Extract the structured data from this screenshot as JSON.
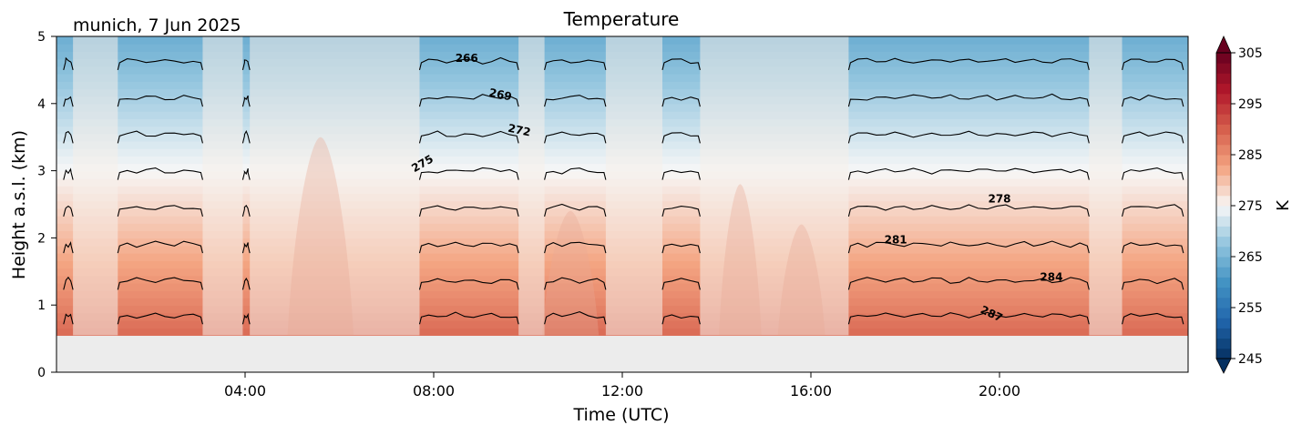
{
  "chart_data": {
    "type": "heatmap",
    "title": "Temperature",
    "location_date": "munich, 7 Jun 2025",
    "xlabel": "Time (UTC)",
    "ylabel": "Height a.s.l. (km)",
    "xlim": [
      0,
      24
    ],
    "ylim": [
      0,
      5
    ],
    "x_ticks": [
      {
        "value": 4,
        "label": "04:00"
      },
      {
        "value": 8,
        "label": "08:00"
      },
      {
        "value": 12,
        "label": "12:00"
      },
      {
        "value": 16,
        "label": "16:00"
      },
      {
        "value": 20,
        "label": "20:00"
      }
    ],
    "y_ticks": [
      {
        "value": 0,
        "label": "0"
      },
      {
        "value": 1,
        "label": "1"
      },
      {
        "value": 2,
        "label": "2"
      },
      {
        "value": 3,
        "label": "3"
      },
      {
        "value": 4,
        "label": "4"
      },
      {
        "value": 5,
        "label": "5"
      }
    ],
    "colorbar": {
      "label": "K",
      "range": [
        245,
        305
      ],
      "ticks": [
        {
          "value": 245,
          "label": "245"
        },
        {
          "value": 255,
          "label": "255"
        },
        {
          "value": 265,
          "label": "265"
        },
        {
          "value": 275,
          "label": "275"
        },
        {
          "value": 285,
          "label": "285"
        },
        {
          "value": 295,
          "label": "295"
        },
        {
          "value": 305,
          "label": "305"
        }
      ],
      "colormap": "RdBu_r",
      "extend": "both"
    },
    "no_data_below_km": 0.55,
    "temperature_profile": {
      "height_km": [
        0.55,
        1.0,
        2.0,
        3.0,
        4.0,
        5.0
      ],
      "temp_K": [
        289,
        286,
        280.5,
        275,
        269.5,
        264
      ]
    },
    "contour_levels": {
      "values": [
        "266",
        "269",
        "272",
        "275",
        "278",
        "281",
        "284",
        "287"
      ],
      "label_positions": [
        {
          "value": 266,
          "x": 8.7,
          "y": 4.62
        },
        {
          "value": 269,
          "x": 9.4,
          "y": 4.08
        },
        {
          "value": 272,
          "x": 9.8,
          "y": 3.55
        },
        {
          "value": 275,
          "x": 7.8,
          "y": 3.06
        },
        {
          "value": 278,
          "x": 20.0,
          "y": 2.53
        },
        {
          "value": 281,
          "x": 17.8,
          "y": 1.92
        },
        {
          "value": 284,
          "x": 21.1,
          "y": 1.36
        },
        {
          "value": 287,
          "x": 19.8,
          "y": 0.82
        }
      ]
    },
    "data_segments": [
      [
        0.15,
        0.35
      ],
      [
        1.3,
        3.1
      ],
      [
        3.95,
        4.1
      ],
      [
        7.7,
        9.8
      ],
      [
        10.35,
        11.65
      ],
      [
        12.85,
        13.65
      ],
      [
        16.8,
        21.9
      ],
      [
        22.6,
        23.9
      ]
    ],
    "gap_segments": [
      [
        0.35,
        1.3
      ],
      [
        3.1,
        3.95
      ],
      [
        4.1,
        7.7
      ],
      [
        9.8,
        10.35
      ],
      [
        11.65,
        12.85
      ],
      [
        13.65,
        16.8
      ],
      [
        21.9,
        22.6
      ]
    ],
    "warm_plumes": [
      {
        "x": 5.6,
        "width": 0.7,
        "height_km": 3.5
      },
      {
        "x": 10.9,
        "width": 0.6,
        "height_km": 2.4
      },
      {
        "x": 14.5,
        "width": 0.45,
        "height_km": 2.8
      },
      {
        "x": 15.8,
        "width": 0.5,
        "height_km": 2.2
      }
    ]
  }
}
